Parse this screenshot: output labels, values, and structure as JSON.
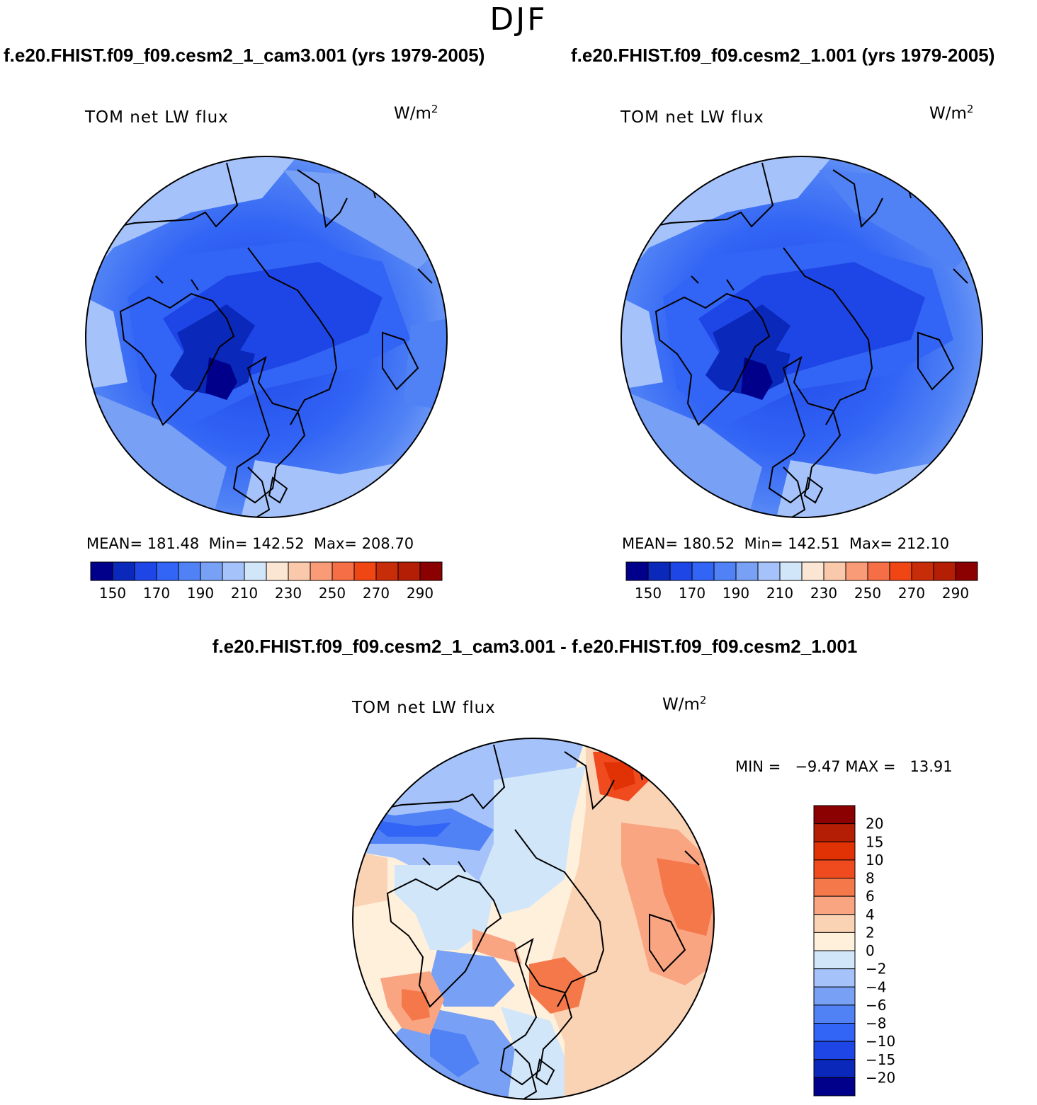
{
  "season": "DJF",
  "units_base": "W/m",
  "units_exp": "2",
  "colors": {
    "abs_scale": [
      "#00008b",
      "#0a28b9",
      "#1e46e6",
      "#3264f5",
      "#5082f5",
      "#78a0f5",
      "#a5c3fa",
      "#d2e6fa",
      "#fae6d2",
      "#fac8aa",
      "#fa9b78",
      "#f56e46",
      "#f04614",
      "#c82d0a",
      "#b41e05",
      "#8b0000"
    ],
    "diff_scale": [
      "#00008b",
      "#0a28b9",
      "#1e46e6",
      "#3264f5",
      "#5082f5",
      "#78a0f5",
      "#a5c3fa",
      "#d2e6fa",
      "#fff0dc",
      "#fad2b4",
      "#faa582",
      "#f5784b",
      "#f04b1e",
      "#e13205",
      "#b41e05",
      "#8b0000"
    ]
  },
  "panels": [
    {
      "case": "f.e20.FHIST.f09_f09.cesm2_1_cam3.001 (yrs 1979-2005)",
      "variable": "TOM net LW flux",
      "mean_label": "MEAN=",
      "mean": "181.48",
      "min_label": "Min=",
      "min": "142.52",
      "max_label": "Max=",
      "max": "208.70"
    },
    {
      "case": "f.e20.FHIST.f09_f09.cesm2_1.001 (yrs 1979-2005)",
      "variable": "TOM net LW flux",
      "mean_label": "MEAN=",
      "mean": "180.52",
      "min_label": "Min=",
      "min": "142.51",
      "max_label": "Max=",
      "max": "212.10"
    }
  ],
  "abs_ticks": [
    "150",
    "170",
    "190",
    "210",
    "230",
    "250",
    "270",
    "290"
  ],
  "diff": {
    "title": "f.e20.FHIST.f09_f09.cesm2_1_cam3.001 - f.e20.FHIST.f09_f09.cesm2_1.001",
    "variable": "TOM net LW flux",
    "minmax": "MIN =   −9.47 MAX =   13.91",
    "ticks": [
      "20",
      "15",
      "10",
      "8",
      "6",
      "4",
      "2",
      "0",
      "−2",
      "−4",
      "−6",
      "−8",
      "−10",
      "−15",
      "−20"
    ]
  },
  "chart_data": [
    {
      "type": "heatmap",
      "title": "f.e20.FHIST.f09_f09.cesm2_1_cam3.001 (yrs 1979-2005)",
      "variable": "TOM net LW flux",
      "units": "W/m2",
      "projection": "north polar stereographic",
      "season": "DJF",
      "levels": [
        150,
        160,
        170,
        180,
        190,
        200,
        210,
        220,
        230,
        240,
        250,
        260,
        270,
        280,
        290
      ],
      "mean": 181.48,
      "min": 142.52,
      "max": 208.7
    },
    {
      "type": "heatmap",
      "title": "f.e20.FHIST.f09_f09.cesm2_1.001 (yrs 1979-2005)",
      "variable": "TOM net LW flux",
      "units": "W/m2",
      "projection": "north polar stereographic",
      "season": "DJF",
      "levels": [
        150,
        160,
        170,
        180,
        190,
        200,
        210,
        220,
        230,
        240,
        250,
        260,
        270,
        280,
        290
      ],
      "mean": 180.52,
      "min": 142.51,
      "max": 212.1
    },
    {
      "type": "heatmap",
      "title": "f.e20.FHIST.f09_f09.cesm2_1_cam3.001 - f.e20.FHIST.f09_f09.cesm2_1.001",
      "variable": "TOM net LW flux",
      "units": "W/m2",
      "projection": "north polar stereographic",
      "season": "DJF",
      "levels": [
        -20,
        -15,
        -10,
        -8,
        -6,
        -4,
        -2,
        0,
        2,
        4,
        6,
        8,
        10,
        15,
        20
      ],
      "min": -9.47,
      "max": 13.91
    }
  ]
}
